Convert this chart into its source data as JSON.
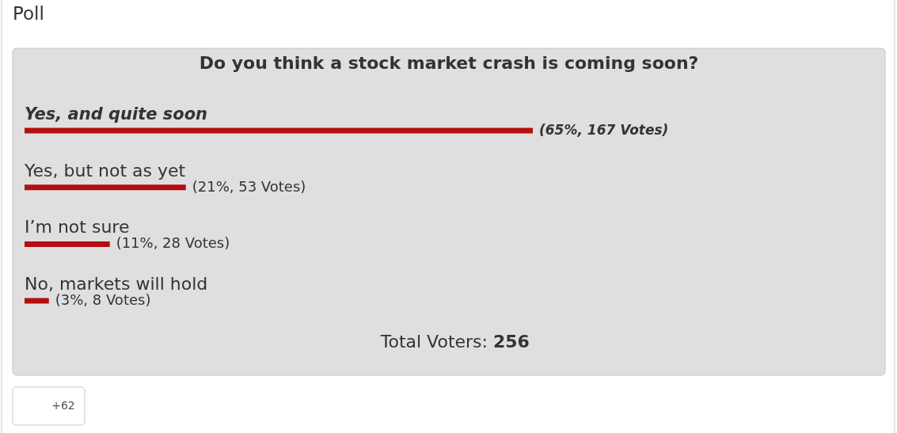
{
  "chart_data": {
    "type": "bar",
    "orientation": "horizontal",
    "title": "Do you think a stock market crash is coming soon?",
    "categories": [
      "Yes, and quite soon",
      "Yes, but not as yet",
      "I’m not sure",
      "No, markets will hold"
    ],
    "values": [
      167,
      53,
      28,
      8
    ],
    "value_labels": [
      "(65%, 167 Votes)",
      "(21%, 53 Votes)",
      "(11%, 28 Votes)",
      "(3%, 8 Votes)"
    ],
    "color": "#b30e10",
    "annotations": [
      "Poll",
      "Total Voters: 256",
      "+62"
    ]
  }
}
